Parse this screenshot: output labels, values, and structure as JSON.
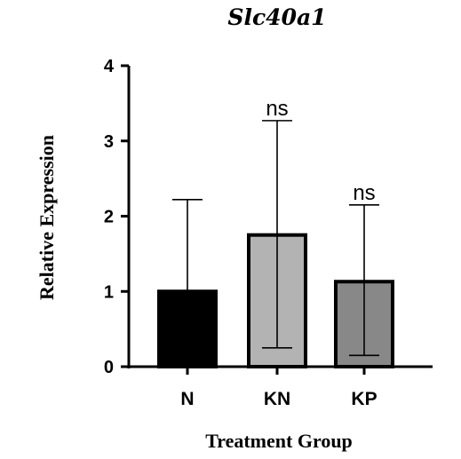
{
  "chart_data": {
    "type": "bar",
    "title": "Slc40a1",
    "xlabel": "Treatment Group",
    "ylabel": "Relative Expression",
    "categories": [
      "N",
      "KN",
      "KP"
    ],
    "values": [
      1.0,
      1.75,
      1.13
    ],
    "error_upper": [
      2.22,
      3.27,
      2.15
    ],
    "error_lower": [
      null,
      0.25,
      0.15
    ],
    "annotations": [
      "",
      "ns",
      "ns"
    ],
    "bar_colors": [
      "#000000",
      "#b3b3b3",
      "#888888"
    ],
    "ylim": [
      0,
      4
    ],
    "yticks": [
      0,
      1,
      2,
      3,
      4
    ],
    "grid": false,
    "legend": "none"
  }
}
